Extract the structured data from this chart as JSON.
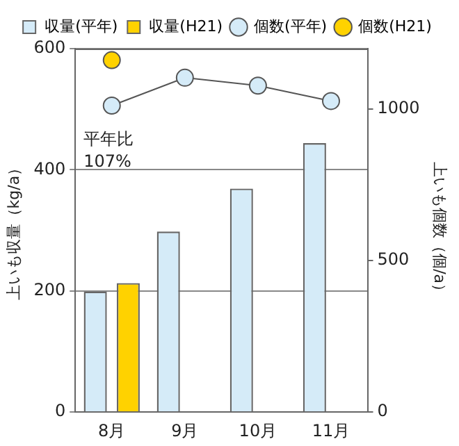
{
  "chart_data": {
    "type": "bar",
    "categories": [
      "8月",
      "9月",
      "10月",
      "11月"
    ],
    "ylabel": "上いも収量（kg/a）",
    "y2label": "上いも個数（個/a）",
    "series": [
      {
        "name": "収量(平年)",
        "color": "#d5ebf8",
        "values": [
          199,
          298,
          369,
          444
        ]
      },
      {
        "name": "収量(H21)",
        "color": "#ffd200",
        "values": [
          213,
          null,
          null,
          null
        ]
      },
      {
        "name": "個数(平年)",
        "type": "line",
        "axis": "y2",
        "color": "#d5ebf8",
        "marker": "circle",
        "values": [
          1012,
          1104,
          1078,
          1027
        ]
      },
      {
        "name": "個数(H21)",
        "type": "line",
        "axis": "y2",
        "color": "#ffd200",
        "marker": "circle",
        "values": [
          1162,
          null,
          null,
          null
        ]
      }
    ],
    "ylim": [
      0,
      600
    ],
    "yticks": [
      0,
      200,
      400,
      600
    ],
    "y2lim": [
      0,
      1200
    ],
    "y2ticks": [
      0,
      500,
      1000
    ],
    "grid": "y",
    "legend": "top",
    "annotations": [
      "平年比\n107%"
    ]
  }
}
